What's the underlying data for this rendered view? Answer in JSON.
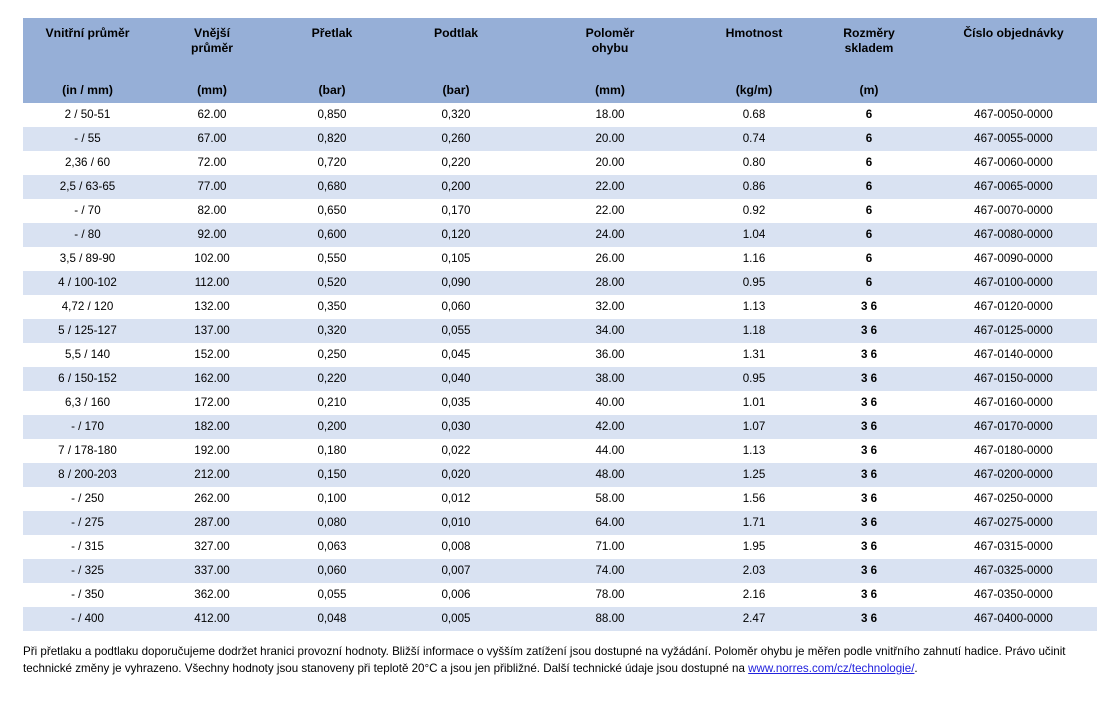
{
  "colors": {
    "header_bg": "#96AFD7",
    "stripe_bg": "#D9E2F2",
    "link_color": "#2222DD",
    "text_color": "#000000"
  },
  "table": {
    "columns": [
      {
        "title": "Vnitřní průměr",
        "unit": "(in / mm)"
      },
      {
        "title": "Vnější\nprůměr",
        "unit": "(mm)"
      },
      {
        "title": "Přetlak",
        "unit": "(bar)"
      },
      {
        "title": "Podtlak",
        "unit": "(bar)"
      },
      {
        "title": "Poloměr\nohybu",
        "unit": "(mm)"
      },
      {
        "title": "Hmotnost",
        "unit": "(kg/m)"
      },
      {
        "title": "Rozměry\nskladem",
        "unit": "(m)"
      },
      {
        "title": "Číslo objednávky",
        "unit": ""
      }
    ],
    "rows": [
      [
        "2 / 50-51",
        "62.00",
        "0,850",
        "0,320",
        "18.00",
        "0.68",
        "6",
        "467-0050-0000"
      ],
      [
        "- / 55",
        "67.00",
        "0,820",
        "0,260",
        "20.00",
        "0.74",
        "6",
        "467-0055-0000"
      ],
      [
        "2,36 / 60",
        "72.00",
        "0,720",
        "0,220",
        "20.00",
        "0.80",
        "6",
        "467-0060-0000"
      ],
      [
        "2,5 / 63-65",
        "77.00",
        "0,680",
        "0,200",
        "22.00",
        "0.86",
        "6",
        "467-0065-0000"
      ],
      [
        "- / 70",
        "82.00",
        "0,650",
        "0,170",
        "22.00",
        "0.92",
        "6",
        "467-0070-0000"
      ],
      [
        "- / 80",
        "92.00",
        "0,600",
        "0,120",
        "24.00",
        "1.04",
        "6",
        "467-0080-0000"
      ],
      [
        "3,5 / 89-90",
        "102.00",
        "0,550",
        "0,105",
        "26.00",
        "1.16",
        "6",
        "467-0090-0000"
      ],
      [
        "4 / 100-102",
        "112.00",
        "0,520",
        "0,090",
        "28.00",
        "0.95",
        "6",
        "467-0100-0000"
      ],
      [
        "4,72 / 120",
        "132.00",
        "0,350",
        "0,060",
        "32.00",
        "1.13",
        "3 6",
        "467-0120-0000"
      ],
      [
        "5 / 125-127",
        "137.00",
        "0,320",
        "0,055",
        "34.00",
        "1.18",
        "3 6",
        "467-0125-0000"
      ],
      [
        "5,5 / 140",
        "152.00",
        "0,250",
        "0,045",
        "36.00",
        "1.31",
        "3 6",
        "467-0140-0000"
      ],
      [
        "6 / 150-152",
        "162.00",
        "0,220",
        "0,040",
        "38.00",
        "0.95",
        "3 6",
        "467-0150-0000"
      ],
      [
        "6,3 / 160",
        "172.00",
        "0,210",
        "0,035",
        "40.00",
        "1.01",
        "3 6",
        "467-0160-0000"
      ],
      [
        "- / 170",
        "182.00",
        "0,200",
        "0,030",
        "42.00",
        "1.07",
        "3 6",
        "467-0170-0000"
      ],
      [
        "7 / 178-180",
        "192.00",
        "0,180",
        "0,022",
        "44.00",
        "1.13",
        "3 6",
        "467-0180-0000"
      ],
      [
        "8 / 200-203",
        "212.00",
        "0,150",
        "0,020",
        "48.00",
        "1.25",
        "3 6",
        "467-0200-0000"
      ],
      [
        "- / 250",
        "262.00",
        "0,100",
        "0,012",
        "58.00",
        "1.56",
        "3 6",
        "467-0250-0000"
      ],
      [
        "- / 275",
        "287.00",
        "0,080",
        "0,010",
        "64.00",
        "1.71",
        "3 6",
        "467-0275-0000"
      ],
      [
        "- / 315",
        "327.00",
        "0,063",
        "0,008",
        "71.00",
        "1.95",
        "3 6",
        "467-0315-0000"
      ],
      [
        "- / 325",
        "337.00",
        "0,060",
        "0,007",
        "74.00",
        "2.03",
        "3 6",
        "467-0325-0000"
      ],
      [
        "- / 350",
        "362.00",
        "0,055",
        "0,006",
        "78.00",
        "2.16",
        "3 6",
        "467-0350-0000"
      ],
      [
        "- / 400",
        "412.00",
        "0,048",
        "0,005",
        "88.00",
        "2.47",
        "3 6",
        "467-0400-0000"
      ]
    ]
  },
  "footer": {
    "text": "Při přetlaku a podtlaku doporučujeme dodržet hranici provozní hodnoty. Bližší informace o vyšším zatížení jsou dostupné na vyžádání. Poloměr ohybu je měřen podle vnitřního zahnutí hadice. Právo učinit technické změny je vyhrazeno. Všechny hodnoty jsou stanoveny při teplotě 20°C a jsou jen přibližné. Další technické údaje jsou dostupné na ",
    "link_text": "www.norres.com/cz/technologie/",
    "suffix": "."
  }
}
